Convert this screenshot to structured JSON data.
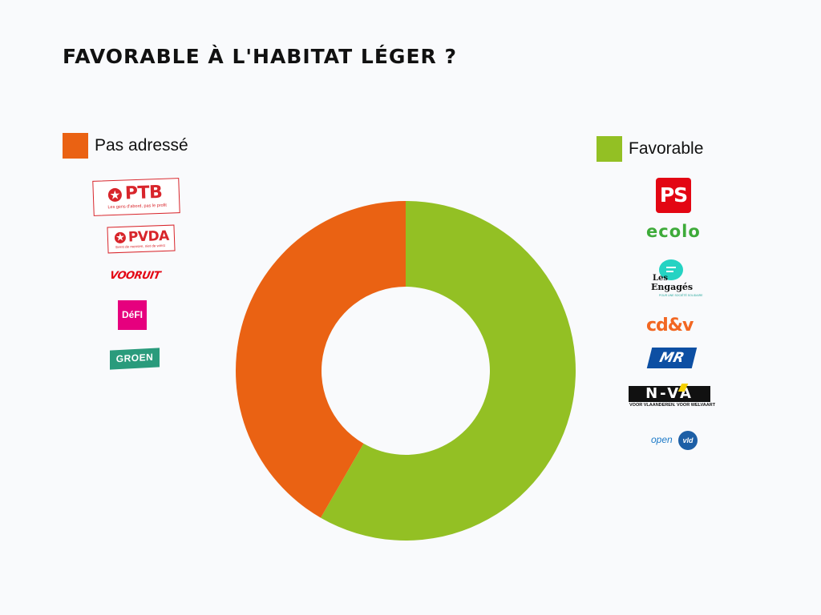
{
  "title": "FAVORABLE À L'HABITAT LÉGER ?",
  "colors": {
    "favorable": "#93c024",
    "pas_adresse": "#ea6213",
    "background": "#f9fafc"
  },
  "legend": {
    "left": {
      "label": "Pas adressé",
      "color": "#ea6213"
    },
    "right": {
      "label": "Favorable",
      "color": "#93c024"
    }
  },
  "logos_left": {
    "ptb": {
      "name": "PTB",
      "tagline": "Les gens d'abord, pas le profit"
    },
    "pvda": {
      "name": "PVDA",
      "tagline": "Eerst de mensen, niet de winst"
    },
    "vooruit": {
      "name": "VOORUIT"
    },
    "defi": {
      "name": "DéFI"
    },
    "groen": {
      "name": "GROEN"
    }
  },
  "logos_right": {
    "ps": {
      "name": "PS"
    },
    "ecolo": {
      "name": "ecolo"
    },
    "engages": {
      "line1": "Les",
      "line2": "Engagés",
      "tagline": "POUR UNE SOCIÉTÉ SOLIDAIRE"
    },
    "cdv": {
      "name": "cd&v"
    },
    "mr": {
      "name": "MR"
    },
    "nva": {
      "name": "N-VA",
      "tagline": "VOOR VLAANDEREN. VOOR WELVAART"
    },
    "openvld": {
      "name1": "open",
      "name2": "vld"
    }
  },
  "chart_data": {
    "type": "pie",
    "donut": true,
    "title": "FAVORABLE À L'HABITAT LÉGER ?",
    "series": [
      {
        "name": "Favorable",
        "value": 7,
        "color": "#93c024"
      },
      {
        "name": "Pas adressé",
        "value": 5,
        "color": "#ea6213"
      }
    ],
    "start": "12 o'clock",
    "direction": "clockwise"
  }
}
